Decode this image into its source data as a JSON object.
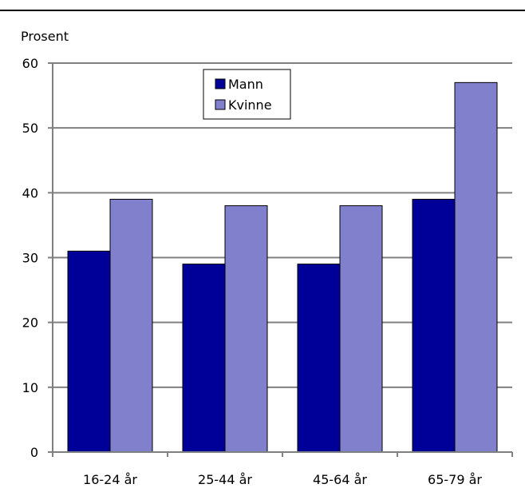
{
  "chart_data": {
    "type": "bar",
    "ylabel": "Prosent",
    "categories": [
      "16-24 år",
      "25-44 år",
      "45-64 år",
      "65-79 år"
    ],
    "series": [
      {
        "name": "Mann",
        "values": [
          31,
          29,
          29,
          39
        ],
        "color": "#000099"
      },
      {
        "name": "Kvinne",
        "values": [
          39,
          38,
          38,
          57
        ],
        "color": "#8080CC"
      }
    ],
    "ylim": [
      0,
      60
    ],
    "yticks": [
      0,
      10,
      20,
      30,
      40,
      50,
      60
    ],
    "grid": true,
    "legend": "top-center"
  }
}
